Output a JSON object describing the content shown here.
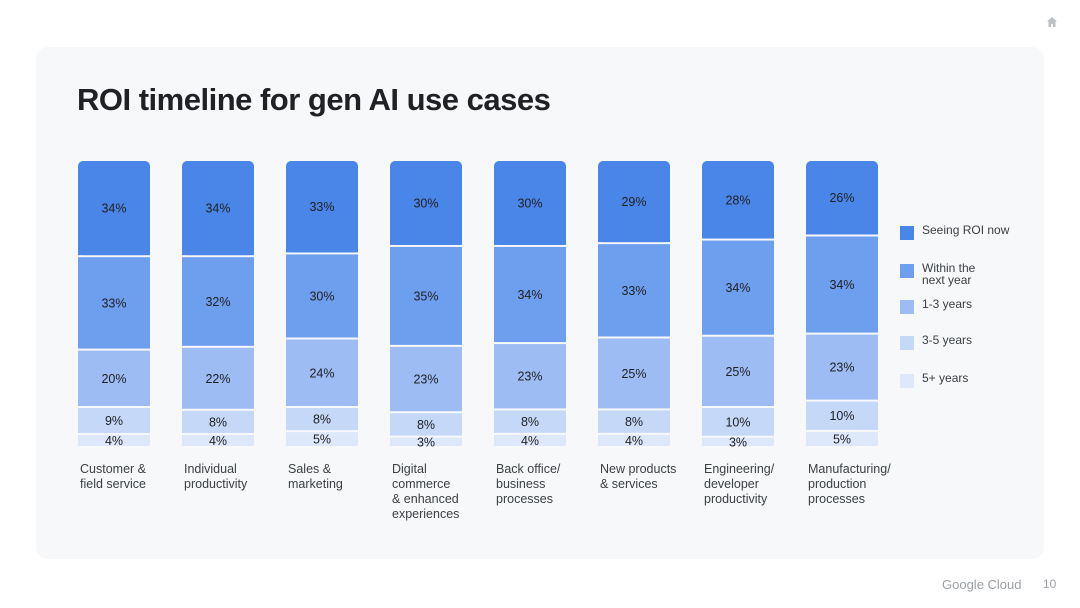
{
  "slide": {
    "title": "ROI timeline for gen AI use cases",
    "footer_brand": "Google Cloud",
    "page_number": "10"
  },
  "chart_data": {
    "type": "bar",
    "stacked": true,
    "normalized": true,
    "title": "ROI timeline for gen AI use cases",
    "xlabel": "",
    "ylabel": "",
    "ylim": [
      0,
      100
    ],
    "legend_position": "right",
    "categories": [
      [
        "Customer &",
        "field service"
      ],
      [
        "Individual",
        "productivity"
      ],
      [
        "Sales &",
        "marketing"
      ],
      [
        "Digital",
        "commerce",
        "& enhanced",
        "experiences"
      ],
      [
        "Back office/",
        "business",
        "processes"
      ],
      [
        "New products",
        "& services"
      ],
      [
        "Engineering/",
        "developer",
        "productivity"
      ],
      [
        "Manufacturing/",
        "production",
        "processes"
      ]
    ],
    "series": [
      {
        "name": "Seeing ROI now",
        "legend_lines": [
          "Seeing ROI now"
        ],
        "color": "#4a86e8",
        "values": [
          34,
          34,
          33,
          30,
          30,
          29,
          28,
          26
        ]
      },
      {
        "name": "Within the next year",
        "legend_lines": [
          "Within the",
          "next year"
        ],
        "color": "#6e9eee",
        "values": [
          33,
          32,
          30,
          35,
          34,
          33,
          34,
          34
        ]
      },
      {
        "name": "1-3 years",
        "legend_lines": [
          "1-3 years"
        ],
        "color": "#9cbcf3",
        "values": [
          20,
          22,
          24,
          23,
          23,
          25,
          25,
          23
        ]
      },
      {
        "name": "3-5 years",
        "legend_lines": [
          "3-5 years"
        ],
        "color": "#c5d8f8",
        "values": [
          9,
          8,
          8,
          8,
          8,
          8,
          10,
          10
        ]
      },
      {
        "name": "5+ years",
        "legend_lines": [
          "5+ years"
        ],
        "color": "#dde8fb",
        "values": [
          4,
          4,
          5,
          3,
          4,
          4,
          3,
          5
        ]
      }
    ]
  },
  "icons": {
    "home": "home-icon"
  }
}
